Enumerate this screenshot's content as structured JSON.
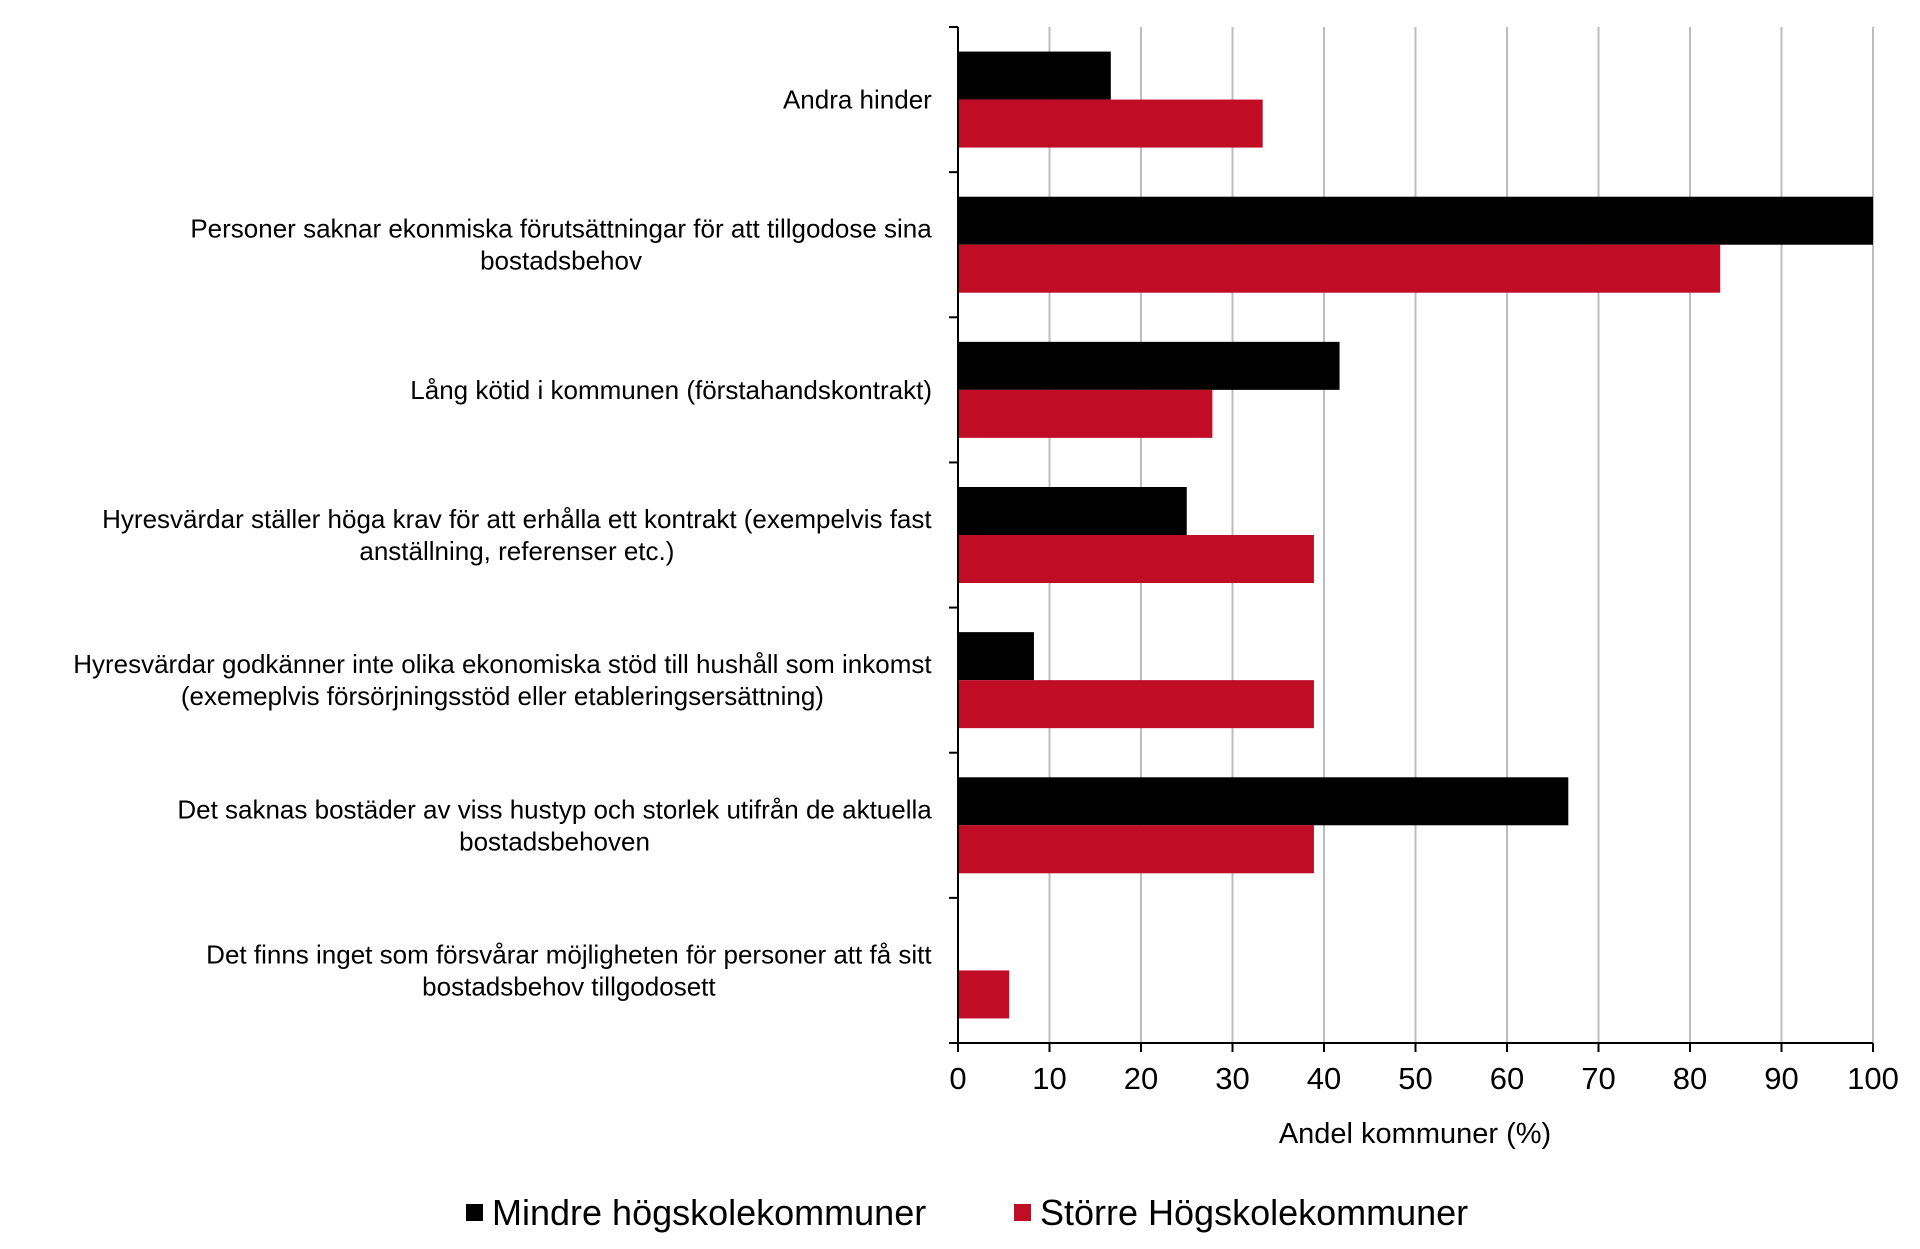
{
  "chart_data": {
    "type": "bar",
    "orientation": "horizontal",
    "categories": [
      "Andra hinder",
      "Personer saknar ekonmiska förutsättningar för att tillgodose sina bostadsbehov",
      "Lång kötid i kommunen (förstahandskontrakt)",
      "Hyresvärdar ställer höga krav för att erhålla ett kontrakt (exempelvis fast anställning, referenser etc.)",
      "Hyresvärdar godkänner inte olika ekonomiska stöd till hushåll som inkomst (exemeplvis försörjningsstöd eller etableringsersättning)",
      "Det saknas bostäder av viss hustyp och storlek utifrån de aktuella bostadsbehoven",
      "Det finns inget som försvårar möjligheten för personer att få sitt bostadsbehov tillgodosett"
    ],
    "category_lines": [
      [
        "Andra hinder"
      ],
      [
        "Personer saknar ekonmiska förutsättningar för att tillgodose sina",
        "bostadsbehov"
      ],
      [
        "Lång kötid i kommunen (förstahandskontrakt)"
      ],
      [
        "Hyresvärdar ställer höga krav för att erhålla ett kontrakt (exempelvis fast",
        "anställning, referenser etc.)"
      ],
      [
        "Hyresvärdar godkänner inte olika ekonomiska stöd till hushåll som inkomst",
        "(exemeplvis försörjningsstöd eller etableringsersättning)"
      ],
      [
        "Det saknas bostäder av viss hustyp och storlek utifrån de aktuella",
        "bostadsbehoven"
      ],
      [
        "Det finns inget som försvårar möjligheten för personer att få sitt",
        "bostadsbehov tillgodosett"
      ]
    ],
    "series": [
      {
        "name": "Mindre högskolekommuner",
        "color": "#000000",
        "values": [
          16.7,
          100,
          41.7,
          25,
          8.3,
          66.7,
          0
        ]
      },
      {
        "name": "Större Högskolekommuner",
        "color": "#c00d25",
        "values": [
          33.3,
          83.3,
          27.8,
          38.9,
          38.9,
          38.9,
          5.6
        ]
      }
    ],
    "xlabel": "Andel kommuner (%)",
    "xlim": [
      0,
      100
    ],
    "xticks": [
      "0",
      "10",
      "20",
      "30",
      "40",
      "50",
      "60",
      "70",
      "80",
      "90",
      "100"
    ],
    "grid": true,
    "legend_position": "bottom"
  }
}
